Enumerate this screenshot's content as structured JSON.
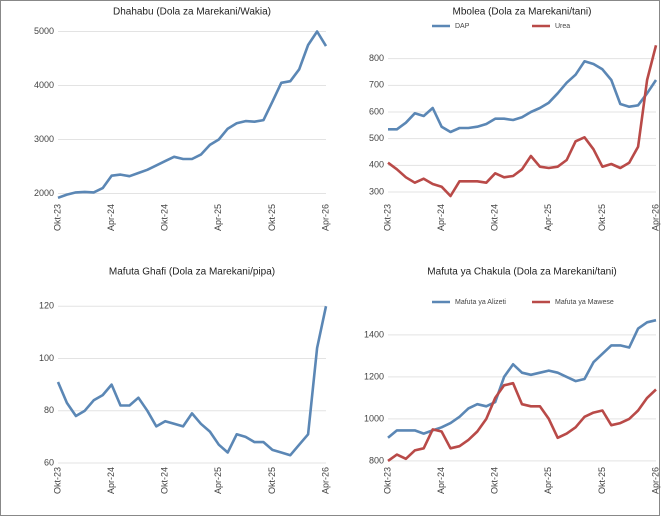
{
  "chart_data": [
    {
      "type": "line",
      "title": "Dhahabu (Dola za Marekani/Wakia)",
      "categories": [
        "Okt-23",
        null,
        null,
        null,
        null,
        null,
        "Apr-24",
        null,
        null,
        null,
        null,
        null,
        "Okt-24",
        null,
        null,
        null,
        null,
        null,
        "Apr-25",
        null,
        null,
        null,
        null,
        null,
        "Okt-25",
        null,
        null,
        null,
        null,
        null,
        "Apr-26"
      ],
      "series": [
        {
          "name": "Dhahabu",
          "color": "#5b87b5",
          "values": [
            1920,
            1980,
            2020,
            2030,
            2020,
            2100,
            2330,
            2350,
            2320,
            2380,
            2440,
            2520,
            2600,
            2680,
            2640,
            2640,
            2720,
            2900,
            3000,
            3200,
            3300,
            3340,
            3330,
            3360,
            3700,
            4050,
            4080,
            4300,
            4750,
            5000,
            4730
          ]
        }
      ],
      "ylim": [
        1880,
        5120
      ],
      "yticks": [
        2000,
        3000,
        4000,
        5000
      ],
      "grid": true,
      "legend": "none"
    },
    {
      "type": "line",
      "title": "Mbolea (Dola za Marekani/tani)",
      "categories": [
        "Okt-23",
        null,
        null,
        null,
        null,
        null,
        "Apr-24",
        null,
        null,
        null,
        null,
        null,
        "Okt-24",
        null,
        null,
        null,
        null,
        null,
        "Apr-25",
        null,
        null,
        null,
        null,
        null,
        "Okt-25",
        null,
        null,
        null,
        null,
        null,
        "Apr-26"
      ],
      "series": [
        {
          "name": "DAP",
          "color": "#5b87b5",
          "values": [
            535,
            535,
            560,
            595,
            585,
            615,
            545,
            525,
            540,
            540,
            545,
            555,
            575,
            575,
            570,
            580,
            600,
            615,
            635,
            670,
            710,
            740,
            790,
            780,
            760,
            720,
            630,
            620,
            625,
            670,
            720
          ]
        },
        {
          "name": "Urea",
          "color": "#b94a48",
          "values": [
            410,
            385,
            355,
            335,
            350,
            330,
            320,
            285,
            340,
            340,
            340,
            335,
            370,
            355,
            360,
            385,
            435,
            395,
            390,
            395,
            420,
            490,
            505,
            460,
            395,
            405,
            390,
            410,
            470,
            720,
            850
          ]
        }
      ],
      "ylim": [
        270,
        870
      ],
      "yticks": [
        300,
        400,
        500,
        600,
        700,
        800
      ],
      "grid": true,
      "legend": "top"
    },
    {
      "type": "line",
      "title": "Mafuta Ghafi (Dola za Marekani/pipa)",
      "categories": [
        "Okt-23",
        null,
        null,
        null,
        null,
        null,
        "Apr-24",
        null,
        null,
        null,
        null,
        null,
        "Okt-24",
        null,
        null,
        null,
        null,
        null,
        "Apr-25",
        null,
        null,
        null,
        null,
        null,
        "Okt-25",
        null,
        null,
        null,
        null,
        null,
        "Apr-26"
      ],
      "series": [
        {
          "name": "Mafuta Ghafi",
          "color": "#5b87b5",
          "values": [
            91,
            83,
            78,
            80,
            84,
            86,
            90,
            82,
            82,
            85,
            80,
            74,
            76,
            75,
            74,
            79,
            75,
            72,
            67,
            64,
            71,
            70,
            68,
            68,
            65,
            64,
            63,
            67,
            71,
            104,
            120
          ]
        }
      ],
      "ylim": [
        60,
        122
      ],
      "yticks": [
        60,
        80,
        100,
        120
      ],
      "grid": true,
      "legend": "none"
    },
    {
      "type": "line",
      "title": "Mafuta ya Chakula (Dola za Marekani/tani)",
      "categories": [
        "Okt-23",
        null,
        null,
        null,
        null,
        null,
        "Apr-24",
        null,
        null,
        null,
        null,
        null,
        "Okt-24",
        null,
        null,
        null,
        null,
        null,
        "Apr-25",
        null,
        null,
        null,
        null,
        null,
        "Okt-25",
        null,
        null,
        null,
        null,
        null,
        "Apr-26"
      ],
      "series": [
        {
          "name": "Mafuta ya Alizeti",
          "color": "#5b87b5",
          "values": [
            910,
            945,
            945,
            945,
            930,
            945,
            960,
            980,
            1010,
            1050,
            1070,
            1060,
            1080,
            1200,
            1260,
            1220,
            1210,
            1220,
            1230,
            1220,
            1200,
            1180,
            1190,
            1270,
            1310,
            1350,
            1350,
            1340,
            1430,
            1460,
            1470
          ]
        },
        {
          "name": "Mafuta ya Mawese",
          "color": "#b94a48",
          "values": [
            800,
            830,
            810,
            850,
            860,
            950,
            940,
            860,
            870,
            900,
            940,
            1000,
            1100,
            1160,
            1170,
            1070,
            1060,
            1060,
            1000,
            910,
            930,
            960,
            1010,
            1030,
            1040,
            970,
            980,
            1000,
            1040,
            1100,
            1140
          ]
        }
      ],
      "ylim": [
        790,
        1490
      ],
      "yticks": [
        800,
        1000,
        1200,
        1400
      ],
      "grid": true,
      "legend": "top"
    }
  ]
}
